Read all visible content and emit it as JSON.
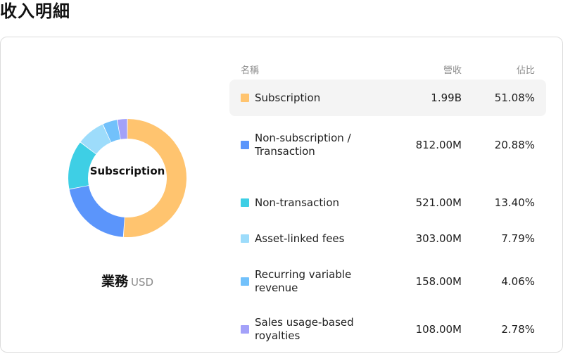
{
  "page": {
    "title": "收入明細"
  },
  "card": {
    "group_label": "業務",
    "currency": "USD"
  },
  "table": {
    "headers": {
      "name": "名稱",
      "revenue": "營收",
      "share": "佔比"
    }
  },
  "chart_data": {
    "type": "pie",
    "style": "donut",
    "center_label": "Subscription",
    "highlighted": "Subscription",
    "slices": [
      {
        "label": "Subscription",
        "revenue": "1.99B",
        "share": "51.08%",
        "value": 51.08,
        "color": "#ffc46f"
      },
      {
        "label": "Non-subscription / Transaction",
        "revenue": "812.00M",
        "share": "20.88%",
        "value": 20.88,
        "color": "#5b95fb"
      },
      {
        "label": "Non-transaction",
        "revenue": "521.00M",
        "share": "13.40%",
        "value": 13.4,
        "color": "#3ecfe5"
      },
      {
        "label": "Asset-linked fees",
        "revenue": "303.00M",
        "share": "7.79%",
        "value": 7.79,
        "color": "#9ddcfb"
      },
      {
        "label": "Recurring variable revenue",
        "revenue": "158.00M",
        "share": "4.06%",
        "value": 4.06,
        "color": "#72c1fb"
      },
      {
        "label": "Sales usage-based royalties",
        "revenue": "108.00M",
        "share": "2.78%",
        "value": 2.78,
        "color": "#a3a1f9"
      }
    ]
  }
}
